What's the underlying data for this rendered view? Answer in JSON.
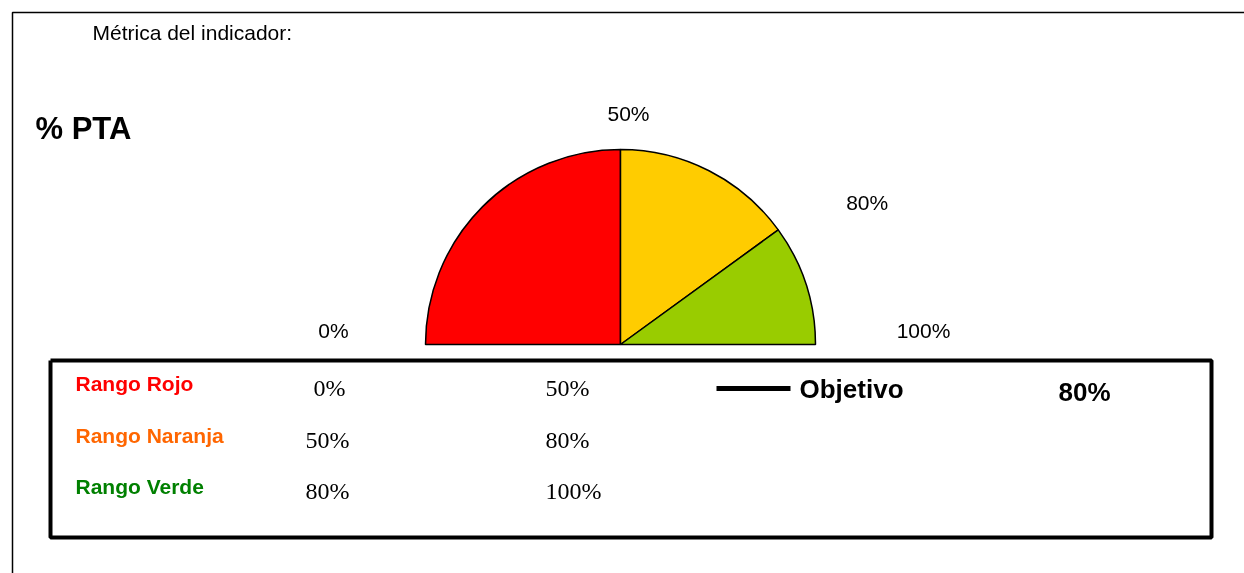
{
  "chart_data": {
    "type": "pie",
    "title": "% PTA",
    "subtitle": "Métrica del indicador:",
    "categories": [
      null,
      null,
      null
    ],
    "values": [
      50,
      30,
      20
    ],
    "colors": [
      "#ff0000",
      "#ffcc00",
      "#99cc00"
    ],
    "annotations": [
      "0%",
      "50%",
      "80%",
      "100%",
      "0%",
      "50%",
      "50%",
      "80%",
      "80%",
      "100%",
      "Objetivo",
      "80%",
      "Rango Rojo",
      "Rango Naranja",
      "Rango Verde"
    ]
  }
}
